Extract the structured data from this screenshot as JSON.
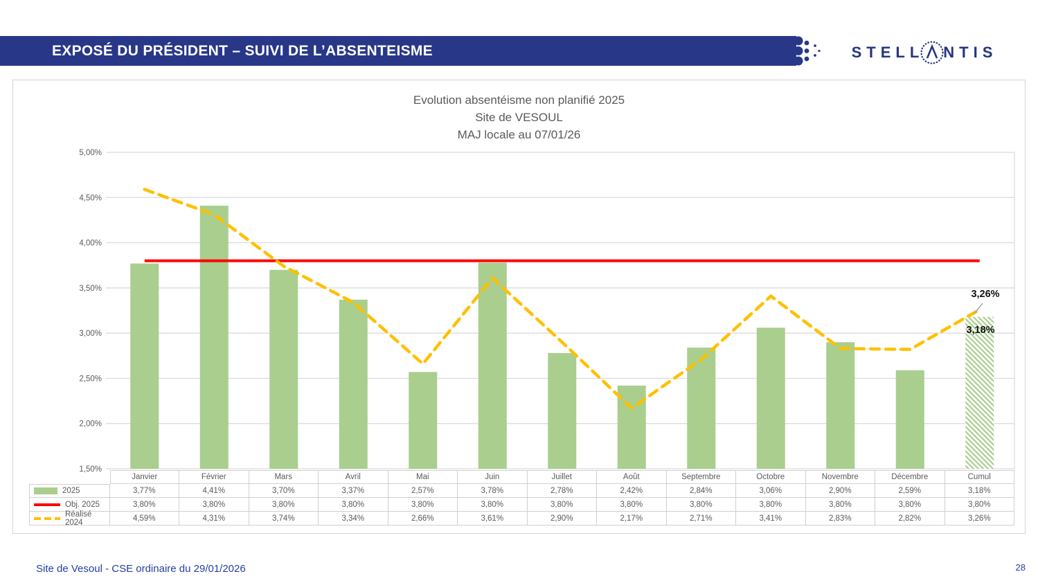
{
  "header": {
    "banner_title": "EXPOSÉ DU PRÉSIDENT – SUIVI DE L’ABSENTEISME",
    "banner_color": "#293789",
    "logo": {
      "name": "STELLANTIS",
      "text_left": "STELL",
      "text_right": "NTIS",
      "color": "#24357F"
    }
  },
  "chart_data": {
    "type": "bar",
    "title": "Evolution absentéisme non planifié 2025",
    "subtitle": "Site de VESOUL",
    "subtitle2": "MAJ locale au 07/01/26",
    "categories": [
      "Janvier",
      "Février",
      "Mars",
      "Avril",
      "Mai",
      "Juin",
      "Juillet",
      "Août",
      "Septembre",
      "Octobre",
      "Novembre",
      "Décembre",
      "Cumul"
    ],
    "series": [
      {
        "name": "2025",
        "type": "bar",
        "color": "#A9CE8E",
        "values": [
          3.77,
          4.41,
          3.7,
          3.37,
          2.57,
          3.78,
          2.78,
          2.42,
          2.84,
          3.06,
          2.9,
          2.59,
          3.18
        ]
      },
      {
        "name": "Obj. 2025",
        "type": "line",
        "color": "#FF0000",
        "values": [
          3.8,
          3.8,
          3.8,
          3.8,
          3.8,
          3.8,
          3.8,
          3.8,
          3.8,
          3.8,
          3.8,
          3.8,
          3.8
        ]
      },
      {
        "name": "Réalisé 2024",
        "type": "dashed-line",
        "color": "#FFC000",
        "values": [
          4.59,
          4.31,
          3.74,
          3.34,
          2.66,
          3.61,
          2.9,
          2.17,
          2.71,
          3.41,
          2.83,
          2.82,
          3.26
        ]
      }
    ],
    "ylim": [
      1.5,
      5.0
    ],
    "ystep": 0.5,
    "grid": true,
    "legend_position": "table-left",
    "cumul_bar_style": "hatched",
    "gridline_color": "#D9D9D9",
    "axis_text_color": "#595959",
    "annotations": [
      {
        "series": "Réalisé 2024",
        "category": "Cumul",
        "text": "3,26%"
      },
      {
        "series": "2025",
        "category": "Cumul",
        "text": "3,18%"
      }
    ]
  },
  "footer": {
    "left_text": "Site de Vesoul - CSE ordinaire du 29/01/2026",
    "page_number": "28"
  }
}
